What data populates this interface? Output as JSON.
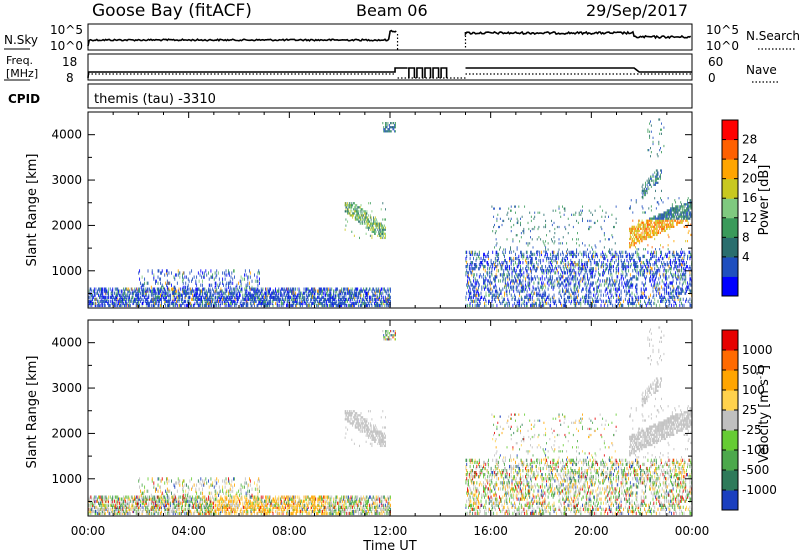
{
  "header": {
    "station": "Goose Bay (fitACF)",
    "beam": "Beam 06",
    "date": "29/Sep/2017"
  },
  "noise_panel": {
    "left_label": "N.Sky",
    "left_ticks": [
      "10^5",
      "10^0"
    ],
    "right_ticks": [
      "10^5",
      "10^0"
    ],
    "right_label": "N.Search"
  },
  "freq_panel": {
    "left_label_line1": "Freq.",
    "left_label_line2": "[MHz]",
    "left_ticks": [
      "18",
      "8"
    ],
    "right_ticks": [
      "60",
      "0"
    ],
    "right_label": "Nave"
  },
  "cpid_panel": {
    "label": "CPID",
    "text": "themis (tau) -3310"
  },
  "time_axis": {
    "ticks": [
      "00:00",
      "04:00",
      "08:00",
      "12:00",
      "16:00",
      "20:00",
      "00:00"
    ],
    "label": "Time UT"
  },
  "power_panel": {
    "ylabel": "Slant Range [km]",
    "yticks": [
      "4000",
      "3000",
      "2000",
      "1000"
    ],
    "colorbar_label": "Power [dB]",
    "colorbar_ticks": [
      "28",
      "24",
      "20",
      "16",
      "12",
      "8",
      "4"
    ],
    "colors": [
      "#0000ff",
      "#1f4fbf",
      "#2a6e6e",
      "#3a9a5a",
      "#7fc97f",
      "#c8c820",
      "#ffa500",
      "#ff6000",
      "#ff0000"
    ]
  },
  "velocity_panel": {
    "ylabel": "Slant Range [km]",
    "yticks": [
      "4000",
      "3000",
      "2000",
      "1000"
    ],
    "colorbar_label": "Velocity [m s^-1]",
    "colorbar_ticks": [
      "1000",
      "500",
      "100",
      "25",
      "-25",
      "-100",
      "-500",
      "-1000"
    ],
    "colors": [
      "#1a3fbf",
      "#2e7a5a",
      "#4ca84c",
      "#66cc33",
      "#c0c0c0",
      "#ffd24d",
      "#ffa500",
      "#ff6a00",
      "#e60000"
    ]
  },
  "chart_data": {
    "type": "heatmap",
    "x_range_hours": [
      0,
      24
    ],
    "y_range_km": [
      180,
      4500
    ],
    "echo_regions": [
      {
        "t0": 0.0,
        "t1": 12.0,
        "r0": 200,
        "r1": 600,
        "density": 0.55
      },
      {
        "t0": 2.0,
        "t1": 6.8,
        "r0": 600,
        "r1": 1000,
        "density": 0.15
      },
      {
        "t0": 10.2,
        "t1": 11.8,
        "r0": 1700,
        "r1": 2500,
        "density": 0.7
      },
      {
        "t0": 11.7,
        "t1": 12.2,
        "r0": 4050,
        "r1": 4250,
        "density": 0.6
      },
      {
        "t0": 15.0,
        "t1": 24.0,
        "r0": 200,
        "r1": 1400,
        "density": 0.28
      },
      {
        "t0": 16.0,
        "t1": 21.0,
        "r0": 1400,
        "r1": 2400,
        "density": 0.06
      },
      {
        "t0": 21.5,
        "t1": 24.0,
        "r0": 1450,
        "r1": 2600,
        "density": 0.75
      },
      {
        "t0": 22.0,
        "t1": 22.8,
        "r0": 2600,
        "r1": 3200,
        "density": 0.5
      },
      {
        "t0": 22.2,
        "t1": 22.9,
        "r0": 3500,
        "r1": 4400,
        "density": 0.25
      }
    ]
  }
}
